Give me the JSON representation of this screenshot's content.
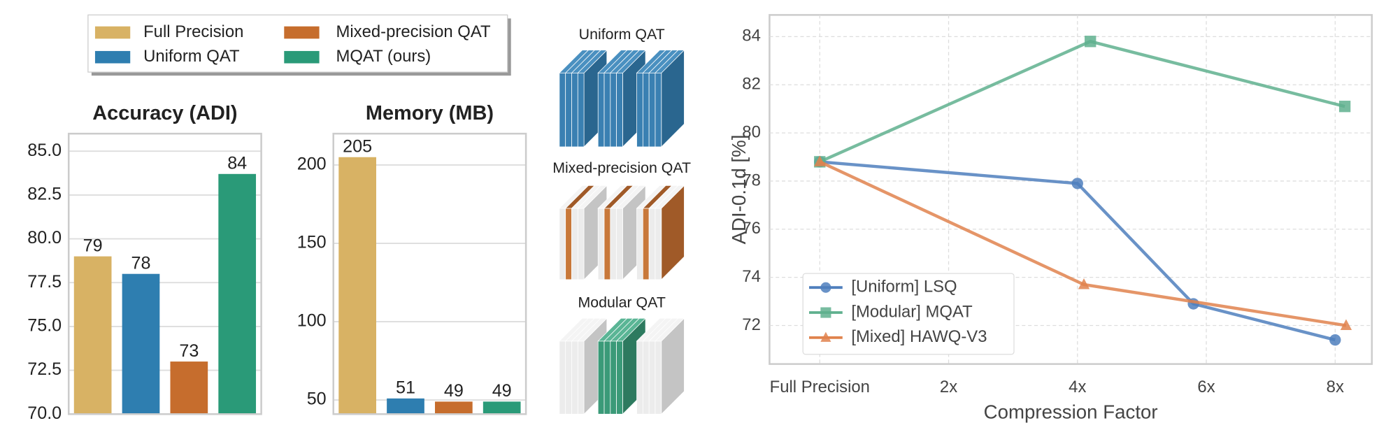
{
  "legend": [
    {
      "name": "Full Precision",
      "color": "#d8b264"
    },
    {
      "name": "Uniform QAT",
      "color": "#2e7eb0"
    },
    {
      "name": "Mixed-precision QAT",
      "color": "#c66d2d"
    },
    {
      "name": "MQAT (ours)",
      "color": "#2a9a78"
    }
  ],
  "diagram": {
    "labels": [
      "Uniform QAT",
      "Mixed-precision QAT",
      "Modular QAT"
    ]
  },
  "chart_data": [
    {
      "type": "bar",
      "title": "Accuracy (ADI)",
      "values": [
        79,
        78,
        73,
        83.7
      ],
      "value_labels": [
        "79",
        "78",
        "73",
        "84"
      ],
      "ylim": [
        70,
        86
      ],
      "yticks": [
        {
          "value": 70,
          "label": "70.0"
        },
        72.5,
        {
          "value": 75,
          "label": "75.0"
        },
        77.5,
        {
          "value": 80,
          "label": "80.0"
        },
        82.5,
        {
          "value": 85,
          "label": "85.0"
        }
      ],
      "grid": true
    },
    {
      "type": "bar",
      "title": "Memory (MB)",
      "values": [
        205,
        51,
        49,
        49
      ],
      "ylim": [
        41,
        220
      ],
      "yticks": [
        50,
        100,
        150,
        200
      ],
      "grid": true
    },
    {
      "type": "line",
      "x_label": "Compression Factor",
      "y_label": "ADI-0.1d [%]",
      "xlim": [
        -0.78,
        8.57
      ],
      "ylim": [
        70.4,
        84.9
      ],
      "xticks": [
        {
          "value": 0,
          "label": "Full Precision"
        },
        {
          "value": 2,
          "label": "2x"
        },
        {
          "value": 4,
          "label": "4x"
        },
        {
          "value": 6,
          "label": "6x"
        },
        {
          "value": 8,
          "label": "8x"
        }
      ],
      "yticks": [
        72,
        74,
        76,
        78,
        80,
        82,
        84
      ],
      "grid": true,
      "legend_position": "lower left",
      "series": [
        {
          "name": "[Uniform] LSQ",
          "color": "#4f7fbd",
          "marker": "circle",
          "x": [
            0,
            4,
            5.8,
            8
          ],
          "y": [
            78.8,
            77.9,
            72.9,
            71.4
          ]
        },
        {
          "name": "[Modular] MQAT",
          "color": "#5fb08e",
          "marker": "square",
          "x": [
            0,
            4.2,
            8.15
          ],
          "y": [
            78.8,
            83.8,
            81.1
          ]
        },
        {
          "name": "[Mixed] HAWQ-V3",
          "color": "#e0834d",
          "marker": "triangle",
          "x": [
            0,
            4.1,
            8.17
          ],
          "y": [
            78.8,
            73.7,
            72.0
          ]
        }
      ]
    }
  ]
}
